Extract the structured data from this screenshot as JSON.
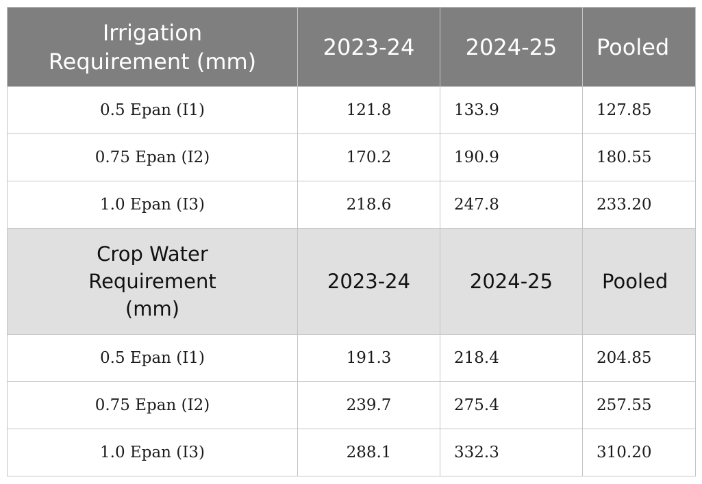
{
  "table": {
    "sections": [
      {
        "header": {
          "label_line1": "Irrigation",
          "label_line2": "Requirement (mm)",
          "label_line3": "",
          "col1": "2023-24",
          "col2": "2024-25",
          "col3": "Pooled"
        },
        "rows": [
          {
            "label": "0.5 Epan (I1)",
            "v1": "121.8",
            "v2": "133.9",
            "v3": "127.85"
          },
          {
            "label": "0.75 Epan (I2)",
            "v1": "170.2",
            "v2": "190.9",
            "v3": "180.55"
          },
          {
            "label": "1.0 Epan (I3)",
            "v1": "218.6",
            "v2": "247.8",
            "v3": "233.20"
          }
        ]
      },
      {
        "header": {
          "label_line1": "Crop Water",
          "label_line2": "Requirement",
          "label_line3": "(mm)",
          "col1": "2023-24",
          "col2": "2024-25",
          "col3": "Pooled"
        },
        "rows": [
          {
            "label": "0.5 Epan (I1)",
            "v1": "191.3",
            "v2": "218.4",
            "v3": "204.85"
          },
          {
            "label": "0.75 Epan (I2)",
            "v1": "239.7",
            "v2": "275.4",
            "v3": "257.55"
          },
          {
            "label": "1.0 Epan (I3)",
            "v1": "288.1",
            "v2": "332.3",
            "v3": "310.20"
          }
        ]
      }
    ]
  },
  "colors": {
    "header_dark_bg": "#7f7f7f",
    "header_light_bg": "#e0e0e0",
    "border": "#c4c4c4"
  }
}
